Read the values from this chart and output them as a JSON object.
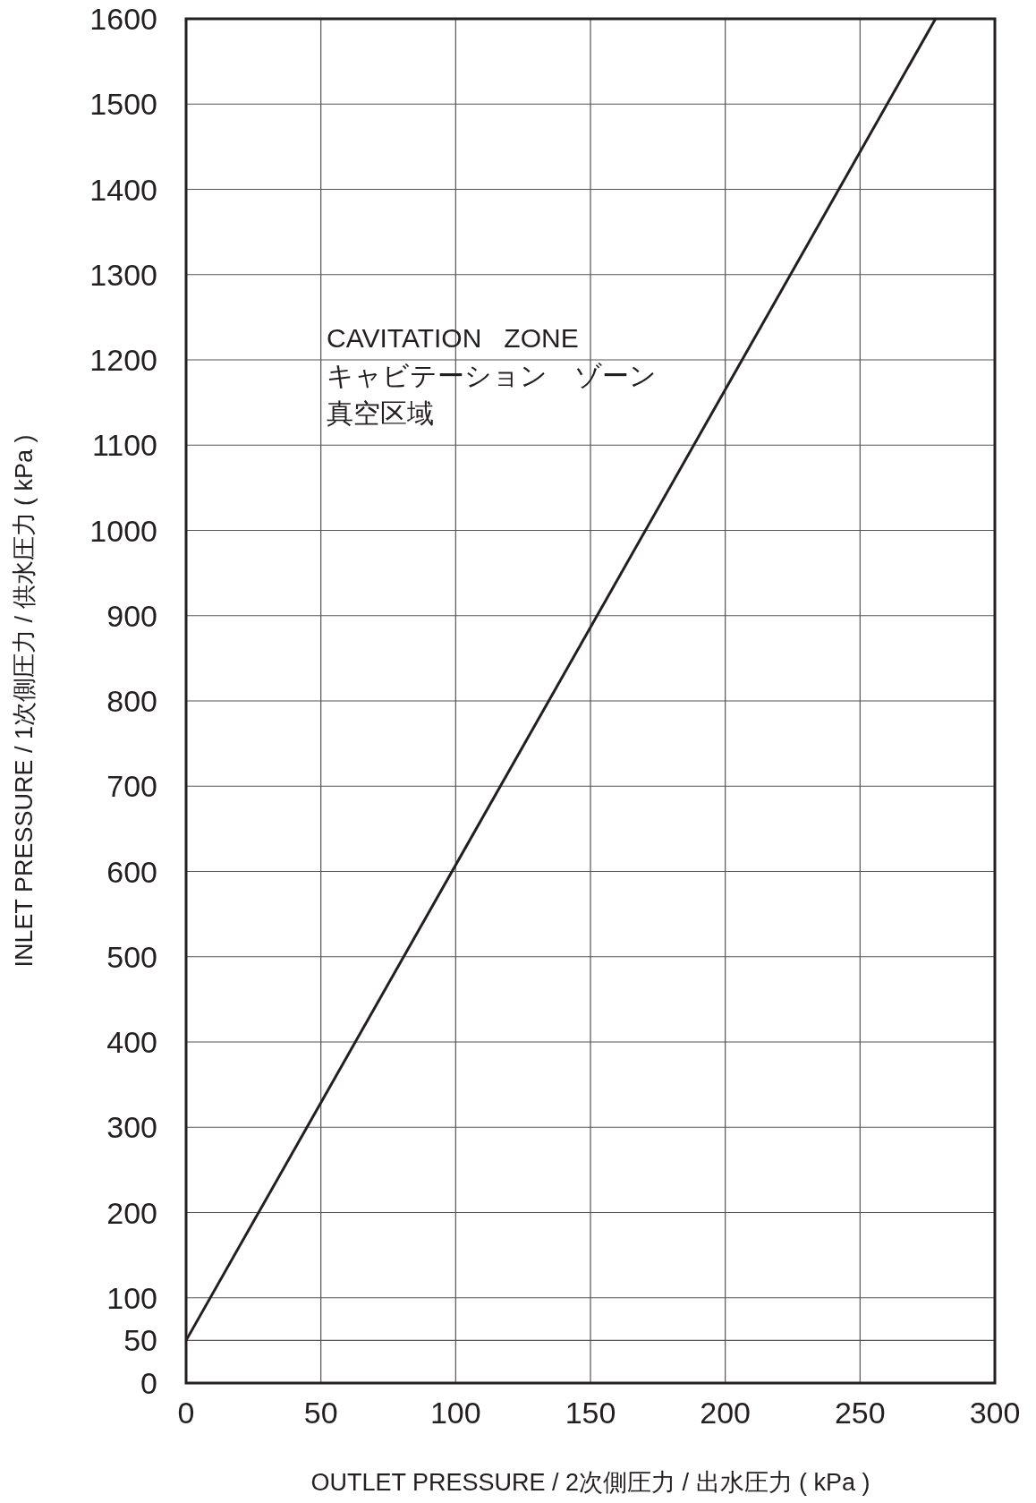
{
  "chart_data": {
    "type": "line",
    "xlabel": "OUTLET PRESSURE / 2次側圧力 / 出水圧力 ( kPa )",
    "ylabel": "INLET PRESSURE / 1次側圧力 / 供水圧力 ( kPa )",
    "annotations": [
      "CAVITATION   ZONE",
      "キャビテーション　ゾーン",
      "真空区域"
    ],
    "series": [
      {
        "color": "#231f20",
        "x": [
          0,
          278
        ],
        "values": [
          50,
          1600
        ]
      }
    ],
    "xlim": [
      0,
      300
    ],
    "xticks": [
      0,
      50,
      100,
      150,
      200,
      250,
      300
    ],
    "ylim": [
      0,
      1600
    ],
    "yticks": [
      0,
      50,
      100,
      200,
      300,
      400,
      500,
      600,
      700,
      800,
      900,
      1000,
      1100,
      1200,
      1300,
      1400,
      1500,
      1600
    ],
    "grid": true,
    "marker": "none",
    "line_style": "solid"
  }
}
